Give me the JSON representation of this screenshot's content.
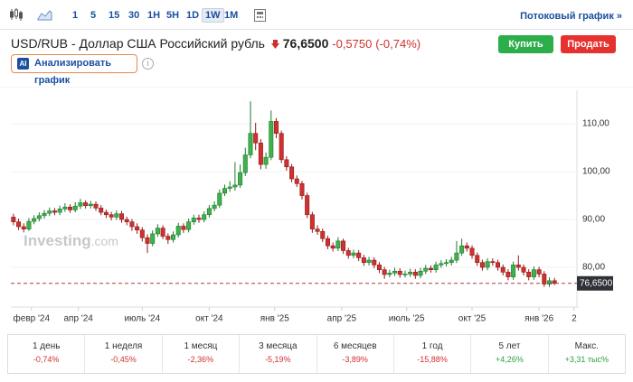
{
  "toolbar": {
    "timeframes": [
      "1",
      "5",
      "15",
      "30",
      "1H",
      "5H",
      "1D",
      "1W",
      "1M"
    ],
    "active": "1W",
    "stream_link": "Потоковый график »"
  },
  "header": {
    "title": "USD/RUB - Доллар США Российский рубль",
    "price": "76,6500",
    "change": "-0,5750",
    "change_pct": "(-0,74%)",
    "buy": "Купить",
    "sell": "Продать",
    "ai_badge": "AI",
    "ai_button": "Анализировать график",
    "info": "i"
  },
  "chart_data": {
    "type": "candlestick",
    "categories": [
      null,
      null,
      null,
      null,
      null,
      null,
      null,
      null,
      null,
      null,
      null,
      null,
      null,
      null,
      null,
      null,
      null,
      null,
      null,
      null,
      null,
      null,
      null,
      null,
      null,
      null,
      null,
      null,
      null,
      null,
      null,
      null,
      null,
      null,
      null,
      null,
      null,
      null,
      null,
      null,
      null,
      null,
      null,
      null,
      null,
      null,
      null,
      null,
      null,
      null,
      null,
      null,
      null,
      null,
      null,
      null,
      null,
      null,
      null,
      null,
      null,
      null,
      null,
      null,
      null,
      null,
      null,
      null,
      null,
      null,
      null,
      null,
      null,
      null,
      null,
      null,
      null,
      null,
      null,
      null,
      null,
      null,
      null,
      null,
      null,
      null,
      null,
      null,
      null,
      null,
      null,
      null,
      null,
      null,
      null,
      null,
      null,
      null,
      null,
      null,
      null,
      null,
      null,
      null,
      null,
      null
    ],
    "open": [
      90.5,
      89.5,
      88.5,
      88.0,
      89.6,
      90.2,
      90.8,
      91.3,
      91.8,
      91.5,
      92.2,
      92.6,
      92.0,
      92.8,
      93.5,
      92.9,
      93.2,
      92.4,
      91.5,
      91.0,
      90.5,
      91.2,
      90.0,
      89.5,
      88.5,
      87.8,
      86.2,
      85.0,
      87.0,
      88.2,
      86.5,
      85.8,
      86.8,
      88.6,
      87.9,
      89.5,
      90.3,
      90.0,
      91.0,
      92.3,
      93.0,
      95.5,
      96.5,
      96.8,
      97.2,
      99.8,
      103.5,
      108.0,
      106.0,
      101.5,
      103.0,
      110.5,
      108.0,
      102.5,
      101.0,
      98.5,
      97.5,
      95.0,
      91.0,
      88.0,
      87.5,
      86.0,
      84.5,
      84.0,
      85.5,
      83.5,
      82.5,
      83.0,
      82.0,
      81.0,
      81.5,
      80.5,
      79.5,
      78.5,
      78.8,
      79.2,
      78.5,
      78.6,
      79.0,
      78.3,
      79.2,
      79.8,
      79.5,
      80.5,
      80.8,
      81.0,
      81.5,
      83.0,
      84.5,
      84.0,
      82.5,
      81.0,
      80.0,
      81.2,
      81.0,
      80.0,
      79.0,
      78.0,
      80.5,
      80.0,
      79.0,
      78.0,
      79.5,
      78.6,
      76.5,
      77.2
    ],
    "high": [
      91.2,
      90.2,
      89.2,
      90.3,
      90.9,
      91.5,
      92.0,
      92.5,
      92.4,
      92.9,
      93.4,
      93.2,
      93.6,
      94.3,
      94.0,
      93.9,
      93.8,
      93.0,
      92.1,
      91.6,
      91.9,
      91.8,
      90.6,
      90.1,
      89.2,
      88.4,
      86.9,
      87.7,
      89.0,
      88.8,
      87.1,
      87.5,
      89.3,
      89.2,
      90.2,
      91.0,
      91.0,
      91.7,
      93.0,
      93.8,
      96.3,
      97.3,
      98.0,
      102.0,
      101.5,
      105.0,
      114.7,
      110.2,
      106.8,
      104.0,
      112.8,
      111.2,
      108.6,
      103.2,
      101.6,
      99.2,
      98.1,
      95.6,
      91.6,
      88.8,
      88.1,
      86.6,
      85.2,
      86.3,
      86.0,
      84.1,
      83.7,
      83.6,
      82.6,
      82.2,
      82.1,
      81.1,
      80.1,
      79.5,
      79.9,
      79.8,
      79.3,
      79.7,
      79.6,
      79.9,
      80.5,
      80.4,
      81.2,
      81.5,
      81.7,
      82.2,
      85.5,
      86.0,
      85.2,
      84.6,
      83.1,
      81.6,
      81.9,
      81.9,
      81.6,
      80.6,
      79.6,
      81.2,
      82.5,
      80.6,
      79.6,
      80.2,
      80.1,
      79.2,
      77.9,
      77.8
    ],
    "low": [
      88.8,
      87.8,
      87.3,
      87.6,
      89.0,
      89.6,
      90.2,
      90.7,
      90.9,
      90.9,
      91.6,
      91.4,
      91.5,
      92.2,
      92.3,
      92.3,
      91.8,
      90.9,
      90.3,
      89.8,
      89.9,
      89.3,
      88.8,
      87.6,
      87.0,
      85.4,
      83.0,
      84.4,
      86.4,
      85.9,
      84.9,
      85.2,
      86.2,
      87.2,
      87.3,
      88.9,
      89.3,
      89.4,
      90.4,
      91.7,
      92.4,
      94.9,
      95.8,
      96.0,
      96.6,
      99.1,
      102.8,
      104.5,
      100.5,
      100.6,
      102.4,
      107.0,
      101.8,
      100.2,
      97.8,
      96.8,
      94.2,
      90.3,
      87.2,
      86.8,
      85.3,
      83.8,
      83.3,
      83.4,
      82.8,
      81.8,
      81.9,
      81.3,
      80.3,
      80.4,
      79.8,
      78.8,
      77.6,
      77.9,
      78.2,
      77.8,
      77.9,
      78.0,
      77.6,
      77.7,
      78.6,
      78.9,
      78.9,
      79.9,
      80.2,
      80.4,
      80.9,
      82.4,
      83.3,
      81.8,
      80.3,
      79.3,
      79.4,
      80.3,
      79.3,
      78.3,
      77.3,
      77.4,
      79.3,
      78.3,
      77.3,
      77.4,
      77.9,
      75.9,
      75.9,
      76.3
    ],
    "close": [
      89.5,
      88.5,
      88.0,
      89.6,
      90.2,
      90.8,
      91.3,
      91.8,
      91.5,
      92.2,
      92.6,
      92.0,
      92.8,
      93.5,
      92.9,
      93.2,
      92.4,
      91.5,
      91.0,
      90.5,
      91.2,
      90.0,
      89.5,
      88.5,
      87.8,
      86.2,
      85.0,
      87.0,
      88.2,
      86.5,
      85.8,
      86.8,
      88.6,
      87.9,
      89.5,
      90.3,
      90.0,
      91.0,
      92.3,
      93.0,
      95.5,
      96.5,
      96.8,
      97.2,
      99.8,
      103.5,
      108.0,
      106.0,
      101.5,
      103.0,
      110.5,
      108.0,
      102.5,
      101.0,
      98.5,
      97.5,
      95.0,
      91.0,
      88.0,
      87.5,
      86.0,
      84.5,
      84.0,
      85.5,
      83.5,
      82.5,
      83.0,
      82.0,
      81.0,
      81.5,
      80.5,
      79.5,
      78.5,
      78.8,
      79.2,
      78.5,
      78.6,
      79.0,
      78.3,
      79.2,
      79.8,
      79.5,
      80.5,
      80.8,
      81.0,
      81.5,
      83.0,
      84.5,
      84.0,
      82.5,
      81.0,
      80.0,
      81.2,
      81.0,
      80.0,
      79.0,
      78.0,
      80.5,
      80.0,
      79.0,
      78.0,
      79.5,
      78.6,
      76.5,
      77.2,
      76.65
    ],
    "up_color": "#3db24b",
    "down_color": "#d0302f",
    "xlim": [
      -0.5,
      109
    ],
    "xticks": [
      {
        "value": 3.5,
        "label": "февр '24"
      },
      {
        "value": 12.6,
        "label": "апр '24"
      },
      {
        "value": 25,
        "label": "июль '24"
      },
      {
        "value": 38,
        "label": "окт '24"
      },
      {
        "value": 50.7,
        "label": "янв '25"
      },
      {
        "value": 63.7,
        "label": "апр '25"
      },
      {
        "value": 76.3,
        "label": "июль '25"
      },
      {
        "value": 89,
        "label": "окт '25"
      },
      {
        "value": 102,
        "label": "янв '26"
      },
      {
        "value": 108.8,
        "label": "2"
      }
    ],
    "ylim": [
      71.7,
      117.0
    ],
    "yticks": [
      {
        "value": 80,
        "label": "80,00"
      },
      {
        "value": 90,
        "label": "90,00"
      },
      {
        "value": 100,
        "label": "100,00"
      },
      {
        "value": 110,
        "label": "110,00"
      }
    ],
    "last_price": {
      "value": 76.65,
      "label": "76,6500"
    },
    "watermark": [
      "Investing",
      ".com"
    ]
  },
  "performance": {
    "periods": [
      "1 день",
      "1 неделя",
      "1 месяц",
      "3 месяца",
      "6 месяцев",
      "1 год",
      "5 лет",
      "Макс."
    ],
    "changes": [
      "-0,74%",
      "-0,45%",
      "-2,36%",
      "-5,19%",
      "-3,89%",
      "-15,88%",
      "+4,26%",
      "+3,31 тыс%"
    ]
  }
}
